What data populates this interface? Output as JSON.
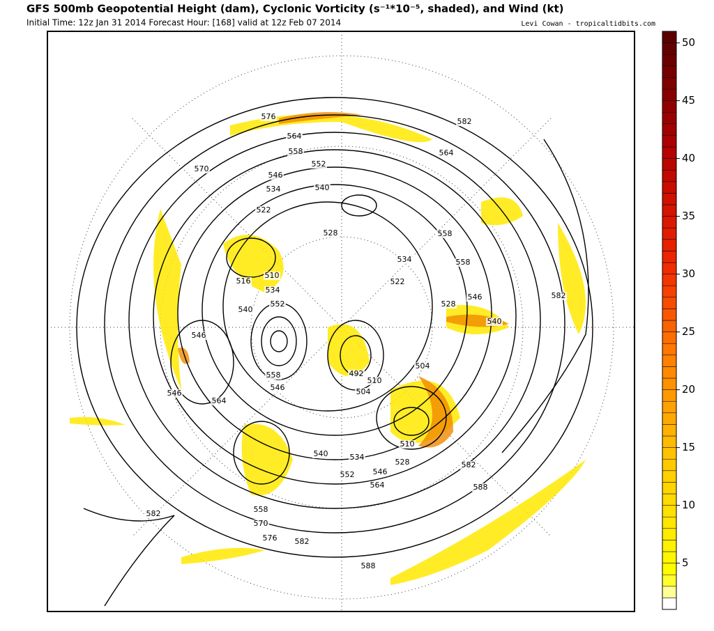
{
  "header": {
    "title": "GFS 500mb Geopotential Height (dam), Cyclonic Vorticity (s⁻¹*10⁻⁵, shaded), and Wind (kt)",
    "subtitle": "Initial Time: 12z Jan 31 2014 Forecast Hour: [168] valid at 12z Feb 07 2014",
    "credit": "Levi Cowan - tropicaltidbits.com"
  },
  "colorbar": {
    "lim": [
      1,
      51
    ],
    "ticks": [
      5,
      10,
      15,
      20,
      25,
      30,
      35,
      40,
      45,
      50
    ]
  },
  "contour_labels": [
    "576",
    "564",
    "558",
    "552",
    "546",
    "540",
    "534",
    "570",
    "522",
    "528",
    "582",
    "564",
    "558",
    "558",
    "534",
    "522",
    "528",
    "546",
    "540",
    "582",
    "516",
    "510",
    "534",
    "552",
    "540",
    "546",
    "546",
    "564",
    "558",
    "546",
    "492",
    "504",
    "510",
    "504",
    "510",
    "528",
    "534",
    "546",
    "552",
    "564",
    "540",
    "582",
    "588",
    "582",
    "558",
    "570",
    "576",
    "582",
    "588"
  ]
}
